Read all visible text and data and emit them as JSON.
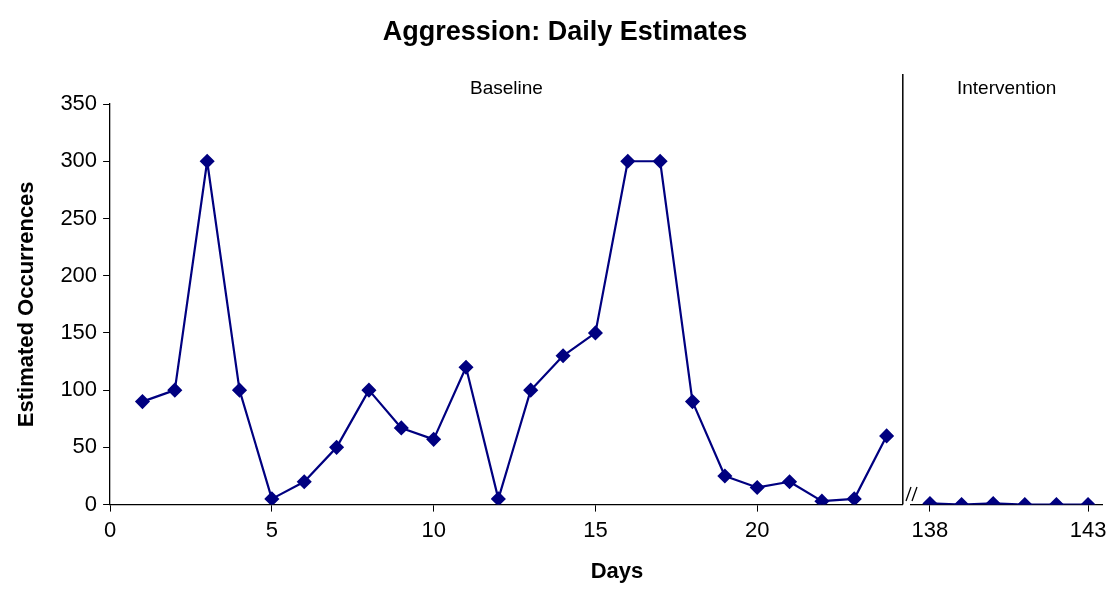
{
  "chart_data": [
    {
      "type": "line",
      "title": "Aggression: Daily Estimates",
      "xlabel": "Days",
      "ylabel": "Estimated Occurrences",
      "x": [
        1,
        2,
        3,
        4,
        5,
        6,
        7,
        8,
        9,
        10,
        11,
        12,
        13,
        14,
        15,
        16,
        17,
        18,
        19,
        20,
        21,
        22,
        23,
        24
      ],
      "series": [
        {
          "color": "#000080",
          "values": [
            90,
            100,
            300,
            100,
            5,
            20,
            50,
            100,
            67,
            57,
            120,
            5,
            100,
            130,
            150,
            300,
            300,
            90,
            25,
            15,
            20,
            3,
            5,
            60
          ]
        }
      ],
      "xlim": [
        0,
        24.5
      ],
      "xticks": [
        0,
        5,
        10,
        15,
        20
      ],
      "ylim": [
        0,
        350
      ],
      "yticks": [
        0,
        50,
        100,
        150,
        200,
        250,
        300,
        350
      ],
      "marker": "diamond",
      "grid": false,
      "annotations": [
        "Baseline"
      ],
      "ref_lines": [
        {
          "axis": "x",
          "value": 24.5
        }
      ]
    },
    {
      "type": "line",
      "x": [
        138,
        139,
        140,
        141,
        142,
        143
      ],
      "series": [
        {
          "color": "#000080",
          "values": [
            1,
            0,
            1,
            0,
            0,
            0
          ]
        }
      ],
      "xlim": [
        137.4,
        143.45
      ],
      "xticks": [
        138,
        143
      ],
      "ylim": [
        0,
        350
      ],
      "yticks": [
        0,
        50,
        100,
        150,
        200,
        250,
        300,
        350
      ],
      "marker": "diamond",
      "grid": false,
      "tick_labels": "x",
      "annotations": [
        "Intervention"
      ]
    }
  ]
}
